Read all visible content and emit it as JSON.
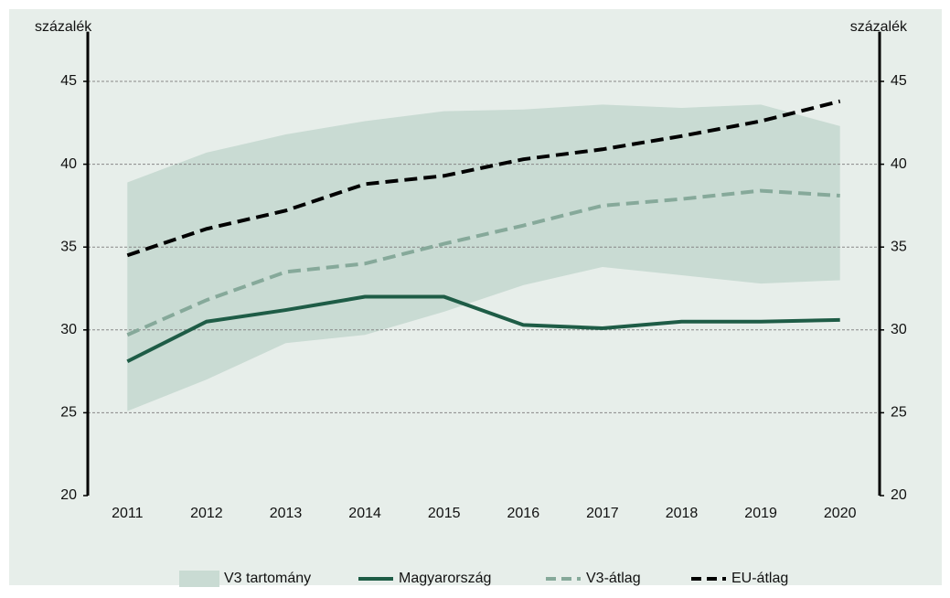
{
  "chart_data": {
    "type": "line",
    "y_label": "százalék",
    "y2_label": "százalék",
    "categories": [
      "2011",
      "2012",
      "2013",
      "2014",
      "2015",
      "2016",
      "2017",
      "2018",
      "2019",
      "2020"
    ],
    "ylim": [
      20,
      48
    ],
    "yticks": [
      20,
      25,
      30,
      35,
      40,
      45
    ],
    "y2lim": [
      20,
      48
    ],
    "y2ticks": [
      20,
      25,
      30,
      35,
      40,
      45
    ],
    "grid": true,
    "legend": "bottom",
    "range": {
      "name": "V3 tartomány",
      "color": "#c9dbd3",
      "high": [
        38.9,
        40.7,
        41.8,
        42.6,
        43.2,
        43.3,
        43.6,
        43.4,
        43.6,
        42.3
      ],
      "low": [
        25.1,
        27.0,
        29.2,
        29.7,
        31.1,
        32.7,
        33.8,
        33.3,
        32.8,
        33.0
      ]
    },
    "series": [
      {
        "name": "Magyarország",
        "color": "#1e5c46",
        "dash": false,
        "values": [
          28.1,
          30.5,
          31.2,
          32.0,
          32.0,
          30.3,
          30.1,
          30.5,
          30.5,
          30.6
        ]
      },
      {
        "name": "V3-átlag",
        "color": "#86a99a",
        "dash": true,
        "values": [
          29.7,
          31.8,
          33.5,
          34.0,
          35.2,
          36.3,
          37.5,
          37.9,
          38.4,
          38.1
        ]
      },
      {
        "name": "EU-átlag",
        "color": "#000000",
        "dash": true,
        "values": [
          34.5,
          36.1,
          37.2,
          38.8,
          39.3,
          40.3,
          40.9,
          41.7,
          42.6,
          43.8
        ]
      }
    ]
  }
}
